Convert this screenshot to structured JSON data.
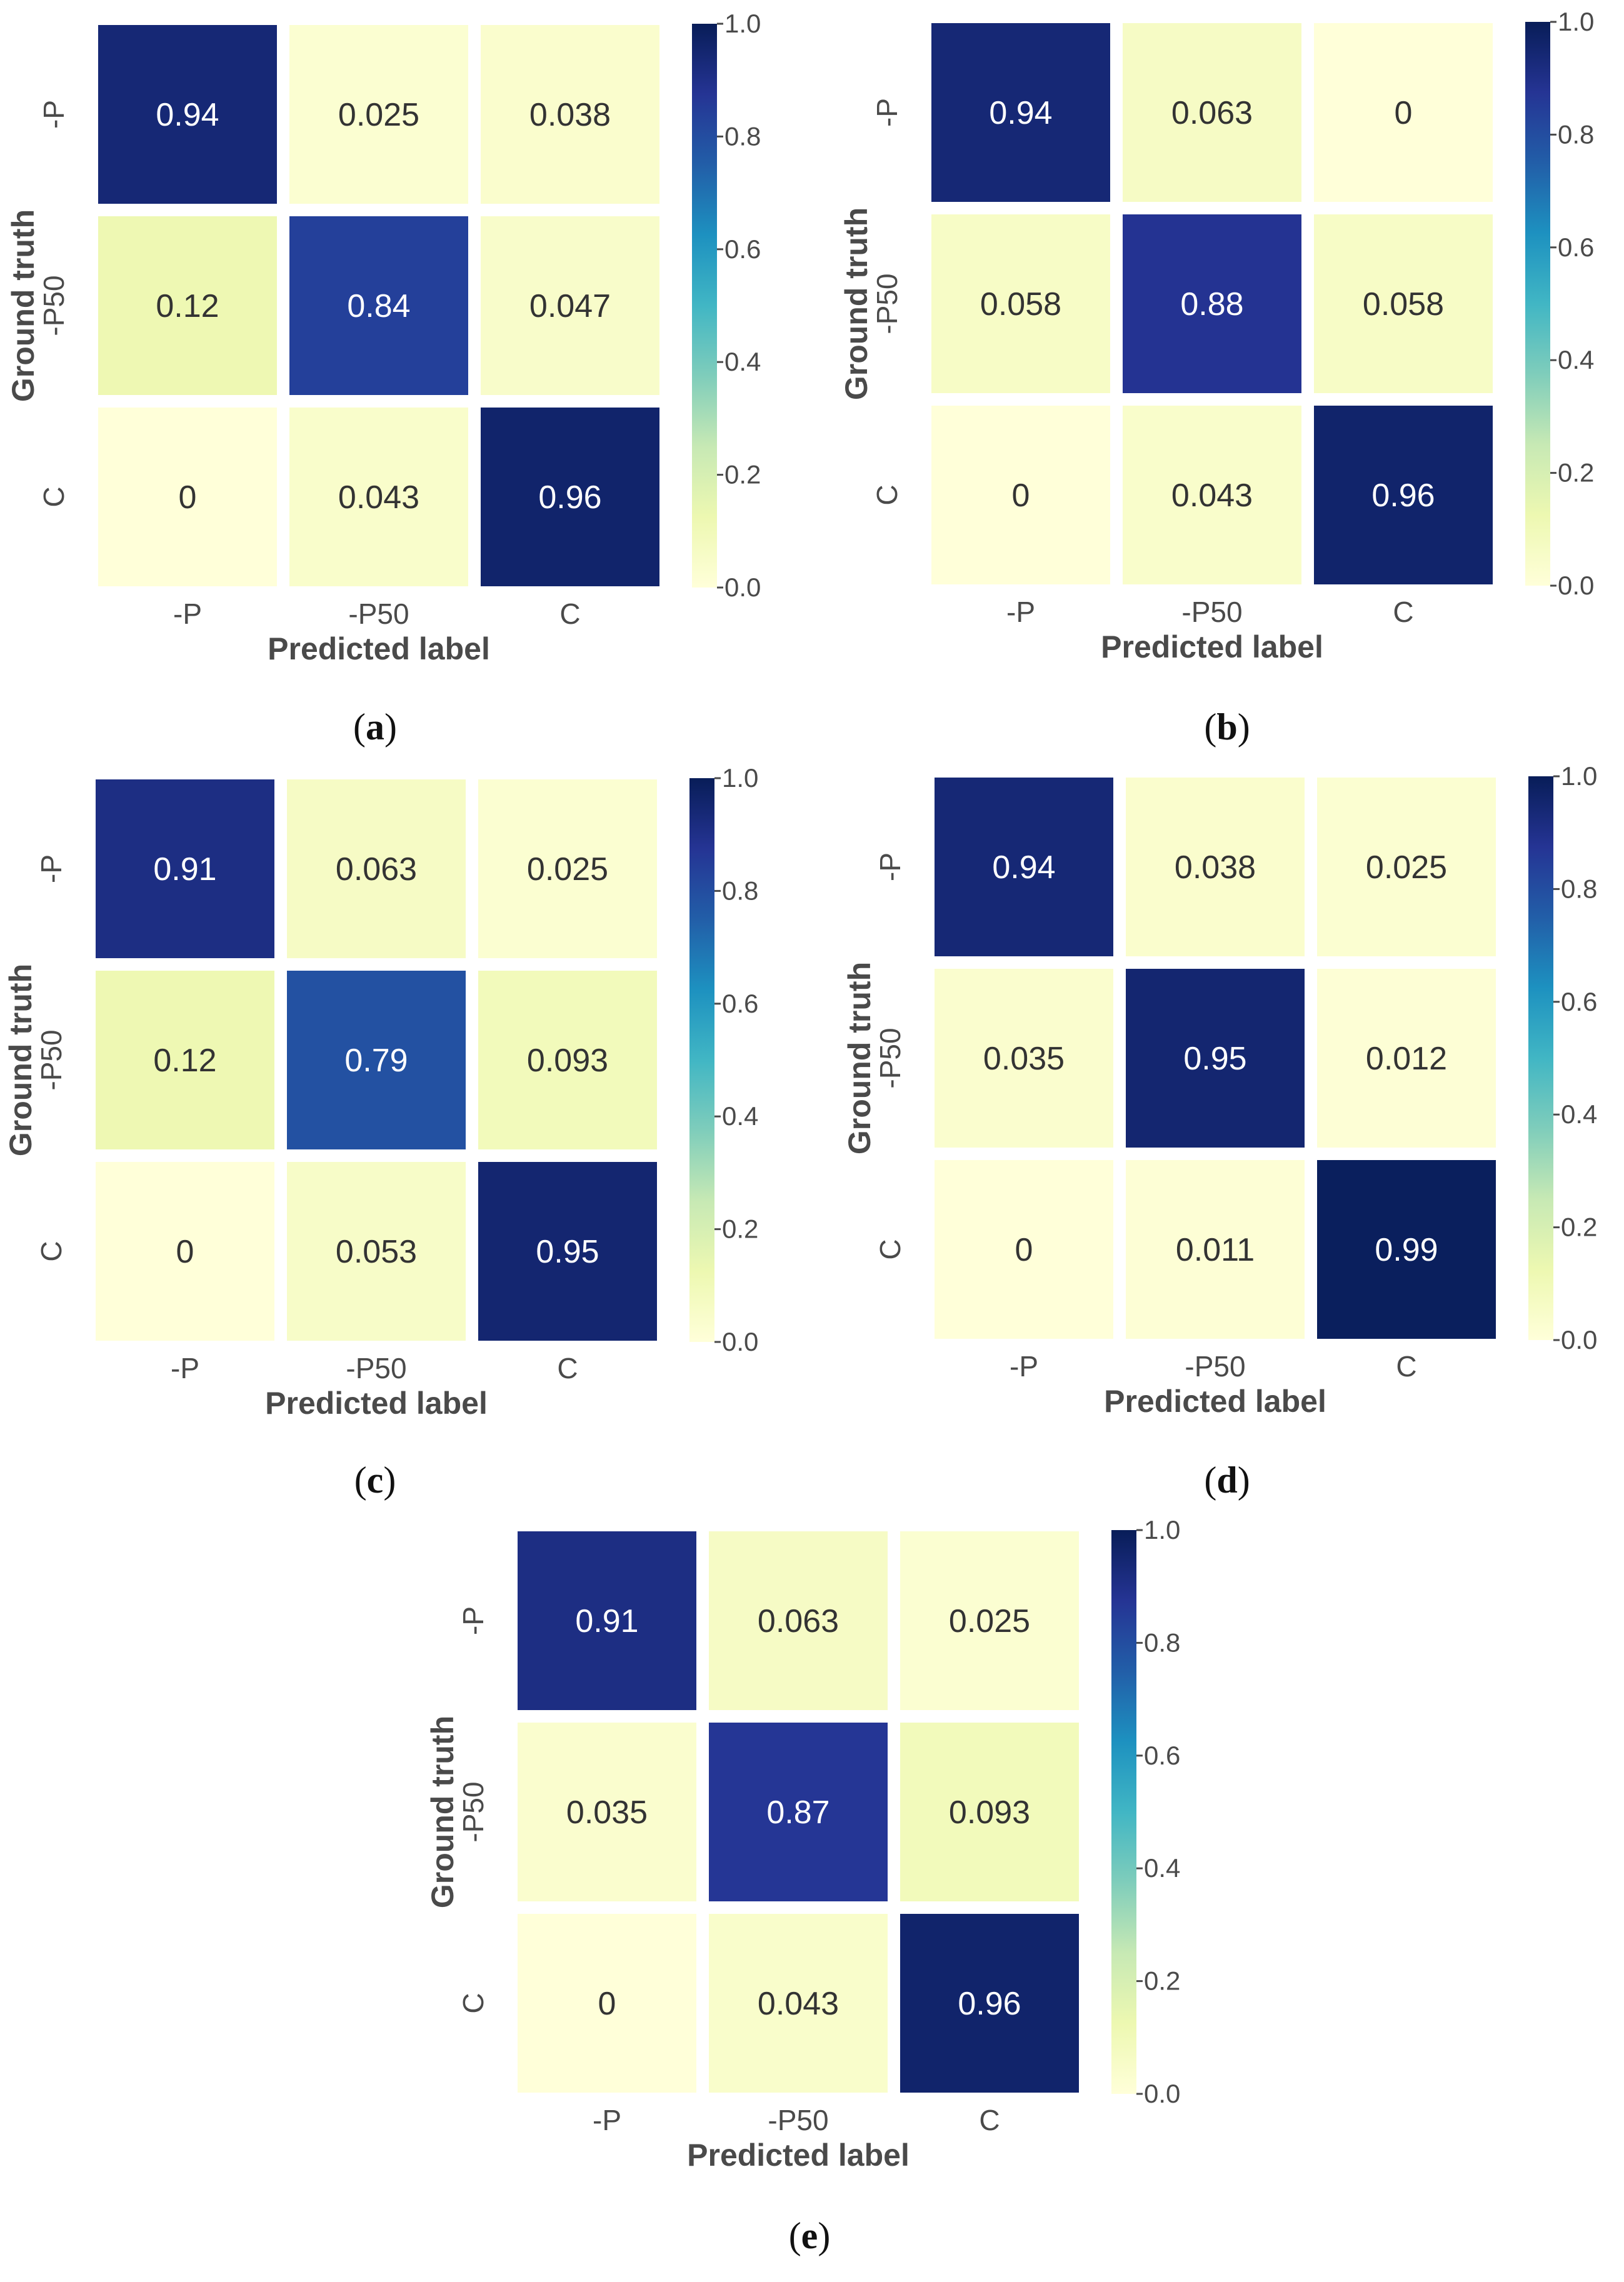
{
  "colors": {
    "colormap": [
      "#ffffd9",
      "#edf8b1",
      "#c7e9b4",
      "#7fcdbb",
      "#41b6c4",
      "#1d91c0",
      "#225ea8",
      "#253494",
      "#081d58"
    ],
    "label_text": "#4a4a4a",
    "dark_cell_text": "#ffffff",
    "light_cell_text": "#333333"
  },
  "chart_data": [
    {
      "type": "heatmap",
      "caption_letter": "a",
      "caption_open": "(",
      "caption_close": ")",
      "xlabel": "Predicted label",
      "ylabel": "Ground truth",
      "x_categories": [
        "-P",
        "-P50",
        "C"
      ],
      "y_categories": [
        "-P",
        "-P50",
        "C"
      ],
      "values": [
        [
          0.94,
          0.025,
          0.038
        ],
        [
          0.12,
          0.84,
          0.047
        ],
        [
          0,
          0.043,
          0.96
        ]
      ],
      "value_labels": [
        [
          "0.94",
          "0.025",
          "0.038"
        ],
        [
          "0.12",
          "0.84",
          "0.047"
        ],
        [
          "0",
          "0.043",
          "0.96"
        ]
      ],
      "colorbar_range": [
        0.0,
        1.0
      ],
      "colorbar_ticks": [
        "0.0",
        "0.2",
        "0.4",
        "0.6",
        "0.8",
        "1.0"
      ]
    },
    {
      "type": "heatmap",
      "caption_letter": "b",
      "caption_open": "(",
      "caption_close": ")",
      "xlabel": "Predicted label",
      "ylabel": "Ground truth",
      "x_categories": [
        "-P",
        "-P50",
        "C"
      ],
      "y_categories": [
        "-P",
        "-P50",
        "C"
      ],
      "values": [
        [
          0.94,
          0.063,
          0
        ],
        [
          0.058,
          0.88,
          0.058
        ],
        [
          0,
          0.043,
          0.96
        ]
      ],
      "value_labels": [
        [
          "0.94",
          "0.063",
          "0"
        ],
        [
          "0.058",
          "0.88",
          "0.058"
        ],
        [
          "0",
          "0.043",
          "0.96"
        ]
      ],
      "colorbar_range": [
        0.0,
        1.0
      ],
      "colorbar_ticks": [
        "0.0",
        "0.2",
        "0.4",
        "0.6",
        "0.8",
        "1.0"
      ]
    },
    {
      "type": "heatmap",
      "caption_letter": "c",
      "caption_open": "(",
      "caption_close": ")",
      "xlabel": "Predicted label",
      "ylabel": "Ground truth",
      "x_categories": [
        "-P",
        "-P50",
        "C"
      ],
      "y_categories": [
        "-P",
        "-P50",
        "C"
      ],
      "values": [
        [
          0.91,
          0.063,
          0.025
        ],
        [
          0.12,
          0.79,
          0.093
        ],
        [
          0,
          0.053,
          0.95
        ]
      ],
      "value_labels": [
        [
          "0.91",
          "0.063",
          "0.025"
        ],
        [
          "0.12",
          "0.79",
          "0.093"
        ],
        [
          "0",
          "0.053",
          "0.95"
        ]
      ],
      "colorbar_range": [
        0.0,
        1.0
      ],
      "colorbar_ticks": [
        "0.0",
        "0.2",
        "0.4",
        "0.6",
        "0.8",
        "1.0"
      ]
    },
    {
      "type": "heatmap",
      "caption_letter": "d",
      "caption_open": "(",
      "caption_close": ")",
      "xlabel": "Predicted label",
      "ylabel": "Ground truth",
      "x_categories": [
        "-P",
        "-P50",
        "C"
      ],
      "y_categories": [
        "-P",
        "-P50",
        "C"
      ],
      "values": [
        [
          0.94,
          0.038,
          0.025
        ],
        [
          0.035,
          0.95,
          0.012
        ],
        [
          0,
          0.011,
          0.99
        ]
      ],
      "value_labels": [
        [
          "0.94",
          "0.038",
          "0.025"
        ],
        [
          "0.035",
          "0.95",
          "0.012"
        ],
        [
          "0",
          "0.011",
          "0.99"
        ]
      ],
      "colorbar_range": [
        0.0,
        1.0
      ],
      "colorbar_ticks": [
        "0.0",
        "0.2",
        "0.4",
        "0.6",
        "0.8",
        "1.0"
      ]
    },
    {
      "type": "heatmap",
      "caption_letter": "e",
      "caption_open": "(",
      "caption_close": ")",
      "xlabel": "Predicted label",
      "ylabel": "Ground truth",
      "x_categories": [
        "-P",
        "-P50",
        "C"
      ],
      "y_categories": [
        "-P",
        "-P50",
        "C"
      ],
      "values": [
        [
          0.91,
          0.063,
          0.025
        ],
        [
          0.035,
          0.87,
          0.093
        ],
        [
          0,
          0.043,
          0.96
        ]
      ],
      "value_labels": [
        [
          "0.91",
          "0.063",
          "0.025"
        ],
        [
          "0.035",
          "0.87",
          "0.093"
        ],
        [
          "0",
          "0.043",
          "0.96"
        ]
      ],
      "colorbar_range": [
        0.0,
        1.0
      ],
      "colorbar_ticks": [
        "0.0",
        "0.2",
        "0.4",
        "0.6",
        "0.8",
        "1.0"
      ]
    }
  ]
}
